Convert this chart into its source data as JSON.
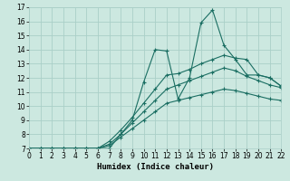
{
  "title": "",
  "xlabel": "Humidex (Indice chaleur)",
  "ylabel": "",
  "xlim": [
    0,
    22
  ],
  "ylim": [
    7,
    17
  ],
  "xticks": [
    0,
    1,
    2,
    3,
    4,
    5,
    6,
    7,
    8,
    9,
    10,
    11,
    12,
    13,
    14,
    15,
    16,
    17,
    18,
    19,
    20,
    21,
    22
  ],
  "yticks": [
    7,
    8,
    9,
    10,
    11,
    12,
    13,
    14,
    15,
    16,
    17
  ],
  "bg_color": "#cce8e0",
  "grid_color": "#aacfc8",
  "line_color": "#1a6e62",
  "lines": [
    {
      "x": [
        0,
        1,
        2,
        3,
        4,
        5,
        6,
        7,
        8,
        9,
        10,
        11,
        12,
        13,
        14,
        15,
        16,
        17,
        18,
        19,
        20,
        21,
        22
      ],
      "y": [
        7,
        7,
        7,
        7,
        7,
        7,
        7,
        7,
        8,
        9,
        11.7,
        14,
        13.9,
        10.5,
        12,
        15.9,
        16.8,
        14.3,
        13.3,
        12.2,
        12.2,
        12,
        11.4
      ]
    },
    {
      "x": [
        0,
        1,
        2,
        3,
        4,
        5,
        6,
        7,
        8,
        9,
        10,
        11,
        12,
        13,
        14,
        15,
        16,
        17,
        18,
        19,
        20,
        21,
        22
      ],
      "y": [
        7,
        7,
        7,
        7,
        7,
        7,
        7,
        7.5,
        8.3,
        9.2,
        10.2,
        11.2,
        12.2,
        12.3,
        12.6,
        13,
        13.3,
        13.6,
        13.4,
        13.3,
        12.2,
        12,
        11.4
      ]
    },
    {
      "x": [
        0,
        1,
        2,
        3,
        4,
        5,
        6,
        7,
        8,
        9,
        10,
        11,
        12,
        13,
        14,
        15,
        16,
        17,
        18,
        19,
        20,
        21,
        22
      ],
      "y": [
        7,
        7,
        7,
        7,
        7,
        7,
        7,
        7.3,
        8,
        8.8,
        9.6,
        10.4,
        11.2,
        11.5,
        11.8,
        12.1,
        12.4,
        12.7,
        12.5,
        12.1,
        11.8,
        11.5,
        11.3
      ]
    },
    {
      "x": [
        0,
        1,
        2,
        3,
        4,
        5,
        6,
        7,
        8,
        9,
        10,
        11,
        12,
        13,
        14,
        15,
        16,
        17,
        18,
        19,
        20,
        21,
        22
      ],
      "y": [
        7,
        7,
        7,
        7,
        7,
        7,
        7,
        7.2,
        7.8,
        8.4,
        9,
        9.6,
        10.2,
        10.4,
        10.6,
        10.8,
        11,
        11.2,
        11.1,
        10.9,
        10.7,
        10.5,
        10.4
      ]
    }
  ]
}
